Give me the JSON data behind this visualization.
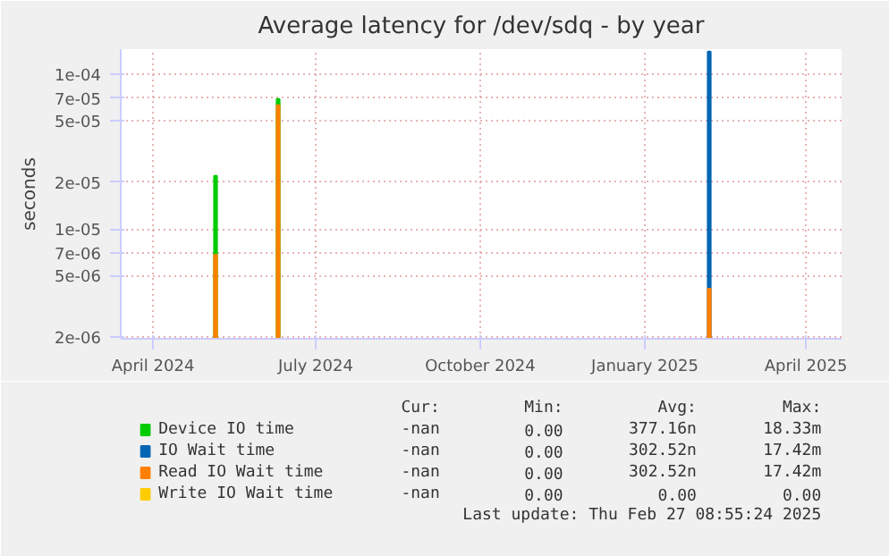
{
  "chart_data": {
    "type": "bar",
    "title": "Average latency for /dev/sdq - by year",
    "ylabel": "seconds",
    "log": true,
    "grid": true,
    "legend": "bottom",
    "xlim": [
      "2024-03-14",
      "2025-04-21"
    ],
    "xticks": [
      {
        "value": "2024-04-01",
        "label": "April 2024"
      },
      {
        "value": "2024-07-01",
        "label": "July 2024"
      },
      {
        "value": "2024-10-01",
        "label": "October 2024"
      },
      {
        "value": "2025-01-01",
        "label": "January 2025"
      },
      {
        "value": "2025-04-01",
        "label": "April 2025"
      }
    ],
    "ylim": [
      1.95e-06,
      0.000145
    ],
    "yticks": [
      {
        "value": 2e-06,
        "label": "2e-06"
      },
      {
        "value": 5e-06,
        "label": "5e-06"
      },
      {
        "value": 7e-06,
        "label": "7e-06"
      },
      {
        "value": 1e-05,
        "label": "1e-05"
      },
      {
        "value": 2e-05,
        "label": "2e-05"
      },
      {
        "value": 5e-05,
        "label": "5e-05"
      },
      {
        "value": 7e-05,
        "label": "7e-05"
      },
      {
        "value": 0.0001,
        "label": "1e-04"
      }
    ],
    "series": [
      {
        "name": "Device IO time",
        "color": "#00cc00",
        "x": [
          "2024-05-06",
          "2024-06-10"
        ],
        "values": [
          2.2e-05,
          6.9e-05
        ]
      },
      {
        "name": "IO Wait time",
        "color": "#0066b3",
        "x": [
          "2025-02-06"
        ],
        "values": [
          0.00014
        ]
      },
      {
        "name": "Read IO Wait time",
        "color": "#ff8000",
        "x": [
          "2024-05-06",
          "2024-06-10",
          "2025-02-06"
        ],
        "values": [
          6.8e-06,
          6.3e-05,
          4.1e-06
        ]
      },
      {
        "name": "Write IO Wait time",
        "color": "#ffcc00"
      }
    ],
    "annotations": [
      "Cur:",
      "Min:",
      "Avg:",
      "Max:",
      "-nan",
      "0.00",
      "377.16n",
      "18.33m",
      "-nan",
      "0.00",
      "302.52n",
      "17.42m",
      "-nan",
      "0.00",
      "302.52n",
      "17.42m",
      "-nan",
      "0.00",
      "0.00",
      "0.00",
      "Last update: Thu Feb 27 08:55:24 2025"
    ]
  }
}
